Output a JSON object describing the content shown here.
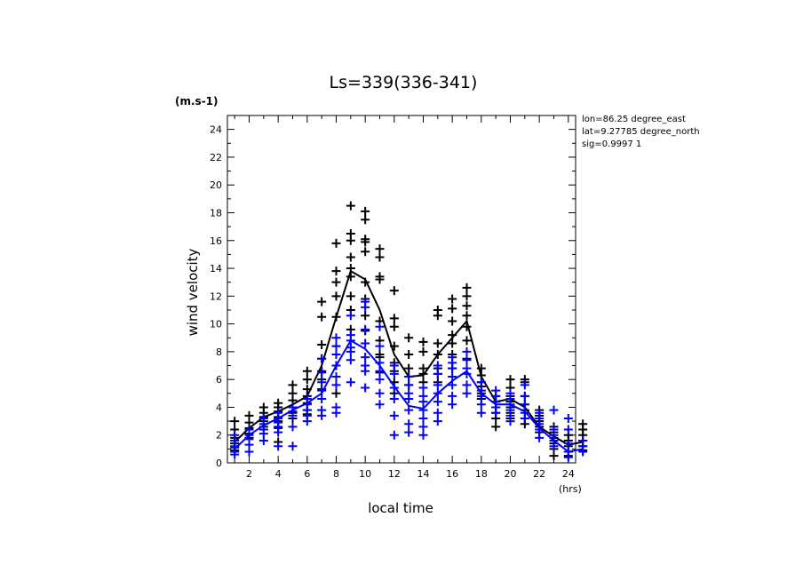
{
  "chart_data": {
    "type": "scatter",
    "title": "Ls=339(336-341)",
    "ylabel": "wind velocity",
    "yunit": "(m.s-1)",
    "xlabel": "local time",
    "xunit": "(hrs)",
    "xlim": [
      0.5,
      24.5
    ],
    "ylim": [
      0,
      25
    ],
    "xticks": [
      2,
      4,
      6,
      8,
      10,
      12,
      14,
      16,
      18,
      20,
      22,
      24
    ],
    "yticks": [
      0,
      2,
      4,
      6,
      8,
      10,
      12,
      14,
      16,
      18,
      20,
      22,
      24
    ],
    "info": [
      "lon=86.25 degree_east",
      "lat=9.27785 degree_north",
      "sig=0.9997 1"
    ],
    "colors": {
      "black_series": "#000000",
      "blue_series": "#0000ff"
    },
    "series": [
      {
        "color": "#000000",
        "mean": [
          1.5,
          2.5,
          3.3,
          3.7,
          4.2,
          4.8,
          7.0,
          10.5,
          13.8,
          13.2,
          11.0,
          7.8,
          6.2,
          6.3,
          7.8,
          9.0,
          10.2,
          6.2,
          4.4,
          4.6,
          4.0,
          2.6,
          1.9,
          1.3,
          1.5
        ],
        "points": [
          [
            1,
            3.0
          ],
          [
            1,
            2.4
          ],
          [
            1,
            1.8
          ],
          [
            1,
            1.4
          ],
          [
            1,
            1.1
          ],
          [
            1,
            0.9
          ],
          [
            2,
            3.4
          ],
          [
            2,
            2.9
          ],
          [
            2,
            2.5
          ],
          [
            2,
            2.1
          ],
          [
            2,
            1.8
          ],
          [
            3,
            4.0
          ],
          [
            3,
            3.6
          ],
          [
            3,
            3.3
          ],
          [
            3,
            3.0
          ],
          [
            3,
            2.6
          ],
          [
            4,
            4.3
          ],
          [
            4,
            4.0
          ],
          [
            4,
            3.7
          ],
          [
            4,
            3.3
          ],
          [
            4,
            3.0
          ],
          [
            4,
            2.5
          ],
          [
            4,
            1.5
          ],
          [
            5,
            5.6
          ],
          [
            5,
            5.0
          ],
          [
            5,
            4.5
          ],
          [
            5,
            4.0
          ],
          [
            5,
            3.6
          ],
          [
            5,
            3.2
          ],
          [
            6,
            6.6
          ],
          [
            6,
            6.0
          ],
          [
            6,
            5.3
          ],
          [
            6,
            4.8
          ],
          [
            6,
            4.3
          ],
          [
            6,
            3.8
          ],
          [
            6,
            3.5
          ],
          [
            7,
            11.6
          ],
          [
            7,
            10.5
          ],
          [
            7,
            8.5
          ],
          [
            7,
            7.5
          ],
          [
            7,
            6.6
          ],
          [
            7,
            6.0
          ],
          [
            7,
            5.3
          ],
          [
            8,
            15.8
          ],
          [
            8,
            13.8
          ],
          [
            8,
            13.0
          ],
          [
            8,
            12.0
          ],
          [
            8,
            10.5
          ],
          [
            8,
            8.4
          ],
          [
            8,
            7.0
          ],
          [
            8,
            6.2
          ],
          [
            8,
            5.0
          ],
          [
            9,
            18.5
          ],
          [
            9,
            16.5
          ],
          [
            9,
            16.0
          ],
          [
            9,
            14.8
          ],
          [
            9,
            14.0
          ],
          [
            9,
            13.4
          ],
          [
            9,
            12.0
          ],
          [
            9,
            11.0
          ],
          [
            9,
            9.6
          ],
          [
            10,
            18.1
          ],
          [
            10,
            17.5
          ],
          [
            10,
            16.1
          ],
          [
            10,
            15.9
          ],
          [
            10,
            15.2
          ],
          [
            10,
            13.0
          ],
          [
            10,
            11.8
          ],
          [
            10,
            10.6
          ],
          [
            10,
            9.5
          ],
          [
            11,
            15.4
          ],
          [
            11,
            14.8
          ],
          [
            11,
            13.4
          ],
          [
            11,
            13.2
          ],
          [
            11,
            10.2
          ],
          [
            11,
            8.8
          ],
          [
            11,
            7.8
          ],
          [
            11,
            7.6
          ],
          [
            11,
            6.5
          ],
          [
            12,
            12.4
          ],
          [
            12,
            10.4
          ],
          [
            12,
            9.8
          ],
          [
            12,
            8.4
          ],
          [
            12,
            7.2
          ],
          [
            12,
            6.6
          ],
          [
            12,
            5.8
          ],
          [
            12,
            5.0
          ],
          [
            13,
            9.0
          ],
          [
            13,
            7.8
          ],
          [
            13,
            6.8
          ],
          [
            13,
            6.2
          ],
          [
            13,
            5.6
          ],
          [
            14,
            8.7
          ],
          [
            14,
            8.0
          ],
          [
            14,
            6.8
          ],
          [
            14,
            6.4
          ],
          [
            14,
            5.8
          ],
          [
            14,
            5.4
          ],
          [
            15,
            11.0
          ],
          [
            15,
            10.6
          ],
          [
            15,
            8.6
          ],
          [
            15,
            7.8
          ],
          [
            15,
            6.8
          ],
          [
            15,
            6.4
          ],
          [
            15,
            5.8
          ],
          [
            16,
            11.8
          ],
          [
            16,
            11.1
          ],
          [
            16,
            10.2
          ],
          [
            16,
            9.2
          ],
          [
            16,
            8.6
          ],
          [
            16,
            7.8
          ],
          [
            16,
            6.8
          ],
          [
            17,
            12.6
          ],
          [
            17,
            12.0
          ],
          [
            17,
            11.3
          ],
          [
            17,
            10.6
          ],
          [
            17,
            9.8
          ],
          [
            17,
            8.8
          ],
          [
            17,
            7.5
          ],
          [
            18,
            6.8
          ],
          [
            18,
            6.3
          ],
          [
            18,
            5.8
          ],
          [
            18,
            5.5
          ],
          [
            18,
            5.0
          ],
          [
            18,
            4.6
          ],
          [
            19,
            4.8
          ],
          [
            19,
            4.4
          ],
          [
            19,
            4.0
          ],
          [
            19,
            3.6
          ],
          [
            19,
            3.2
          ],
          [
            19,
            2.6
          ],
          [
            20,
            6.0
          ],
          [
            20,
            5.4
          ],
          [
            20,
            4.8
          ],
          [
            20,
            4.4
          ],
          [
            20,
            4.0
          ],
          [
            20,
            3.6
          ],
          [
            20,
            3.2
          ],
          [
            21,
            6.0
          ],
          [
            21,
            5.8
          ],
          [
            21,
            4.8
          ],
          [
            21,
            4.2
          ],
          [
            21,
            3.8
          ],
          [
            21,
            3.2
          ],
          [
            21,
            2.8
          ],
          [
            22,
            3.8
          ],
          [
            22,
            3.4
          ],
          [
            22,
            3.0
          ],
          [
            22,
            2.6
          ],
          [
            22,
            2.2
          ],
          [
            23,
            2.6
          ],
          [
            23,
            2.2
          ],
          [
            23,
            1.8
          ],
          [
            23,
            1.4
          ],
          [
            23,
            1.0
          ],
          [
            23,
            0.5
          ],
          [
            24,
            2.0
          ],
          [
            24,
            1.6
          ],
          [
            24,
            1.2
          ],
          [
            24,
            0.8
          ],
          [
            24,
            0.5
          ],
          [
            25,
            2.8
          ],
          [
            25,
            2.4
          ],
          [
            25,
            2.0
          ],
          [
            25,
            1.6
          ],
          [
            25,
            1.2
          ],
          [
            25,
            0.9
          ]
        ]
      },
      {
        "color": "#0000ff",
        "mean": [
          1.0,
          2.0,
          2.7,
          3.2,
          3.8,
          4.3,
          5.0,
          7.0,
          8.8,
          8.2,
          7.0,
          5.5,
          4.1,
          3.9,
          5.0,
          5.9,
          6.6,
          5.0,
          4.2,
          4.2,
          3.7,
          2.5,
          1.6,
          0.8,
          1.0
        ],
        "points": [
          [
            1,
            2.0
          ],
          [
            1,
            1.6
          ],
          [
            1,
            1.2
          ],
          [
            1,
            0.8
          ],
          [
            1,
            0.6
          ],
          [
            2,
            2.4
          ],
          [
            2,
            2.0
          ],
          [
            2,
            1.7
          ],
          [
            2,
            1.3
          ],
          [
            2,
            0.8
          ],
          [
            3,
            3.2
          ],
          [
            3,
            2.8
          ],
          [
            3,
            2.4
          ],
          [
            3,
            2.1
          ],
          [
            3,
            1.6
          ],
          [
            4,
            3.6
          ],
          [
            4,
            3.2
          ],
          [
            4,
            2.9
          ],
          [
            4,
            2.6
          ],
          [
            4,
            2.2
          ],
          [
            4,
            1.2
          ],
          [
            5,
            4.0
          ],
          [
            5,
            3.7
          ],
          [
            5,
            3.4
          ],
          [
            5,
            2.6
          ],
          [
            5,
            1.2
          ],
          [
            6,
            4.6
          ],
          [
            6,
            4.2
          ],
          [
            6,
            3.8
          ],
          [
            6,
            3.4
          ],
          [
            6,
            3.0
          ],
          [
            7,
            7.5
          ],
          [
            7,
            6.5
          ],
          [
            7,
            5.8
          ],
          [
            7,
            5.2
          ],
          [
            7,
            4.6
          ],
          [
            7,
            3.8
          ],
          [
            7,
            3.4
          ],
          [
            8,
            9.0
          ],
          [
            8,
            8.4
          ],
          [
            8,
            7.8
          ],
          [
            8,
            7.0
          ],
          [
            8,
            6.2
          ],
          [
            8,
            5.6
          ],
          [
            8,
            4.0
          ],
          [
            8,
            3.6
          ],
          [
            9,
            10.6
          ],
          [
            9,
            9.2
          ],
          [
            9,
            8.8
          ],
          [
            9,
            8.3
          ],
          [
            9,
            8.0
          ],
          [
            9,
            7.4
          ],
          [
            9,
            5.8
          ],
          [
            10,
            11.6
          ],
          [
            10,
            11.2
          ],
          [
            10,
            9.6
          ],
          [
            10,
            8.6
          ],
          [
            10,
            7.6
          ],
          [
            10,
            7.0
          ],
          [
            10,
            6.6
          ],
          [
            10,
            5.4
          ],
          [
            11,
            9.8
          ],
          [
            11,
            8.4
          ],
          [
            11,
            7.2
          ],
          [
            11,
            6.6
          ],
          [
            11,
            6.0
          ],
          [
            11,
            5.0
          ],
          [
            11,
            4.2
          ],
          [
            12,
            7.0
          ],
          [
            12,
            6.4
          ],
          [
            12,
            5.4
          ],
          [
            12,
            4.6
          ],
          [
            12,
            3.4
          ],
          [
            12,
            2.0
          ],
          [
            13,
            6.2
          ],
          [
            13,
            5.6
          ],
          [
            13,
            5.0
          ],
          [
            13,
            4.6
          ],
          [
            13,
            3.8
          ],
          [
            13,
            2.8
          ],
          [
            13,
            2.2
          ],
          [
            14,
            5.4
          ],
          [
            14,
            4.8
          ],
          [
            14,
            4.4
          ],
          [
            14,
            3.8
          ],
          [
            14,
            3.2
          ],
          [
            14,
            2.6
          ],
          [
            14,
            2.0
          ],
          [
            15,
            7.0
          ],
          [
            15,
            6.4
          ],
          [
            15,
            5.6
          ],
          [
            15,
            5.0
          ],
          [
            15,
            4.4
          ],
          [
            15,
            3.6
          ],
          [
            15,
            3.0
          ],
          [
            16,
            7.6
          ],
          [
            16,
            7.2
          ],
          [
            16,
            6.8
          ],
          [
            16,
            6.2
          ],
          [
            16,
            5.6
          ],
          [
            16,
            4.8
          ],
          [
            16,
            4.2
          ],
          [
            17,
            8.0
          ],
          [
            17,
            7.4
          ],
          [
            17,
            6.8
          ],
          [
            17,
            6.4
          ],
          [
            17,
            5.6
          ],
          [
            17,
            5.0
          ],
          [
            18,
            5.8
          ],
          [
            18,
            5.2
          ],
          [
            18,
            4.8
          ],
          [
            18,
            4.2
          ],
          [
            18,
            3.6
          ],
          [
            19,
            5.2
          ],
          [
            19,
            4.8
          ],
          [
            19,
            4.4
          ],
          [
            19,
            4.0
          ],
          [
            19,
            3.6
          ],
          [
            20,
            5.0
          ],
          [
            20,
            4.6
          ],
          [
            20,
            4.2
          ],
          [
            20,
            3.8
          ],
          [
            20,
            3.4
          ],
          [
            20,
            3.0
          ],
          [
            21,
            5.6
          ],
          [
            21,
            4.8
          ],
          [
            21,
            4.2
          ],
          [
            21,
            3.6
          ],
          [
            21,
            3.2
          ],
          [
            22,
            3.6
          ],
          [
            22,
            3.2
          ],
          [
            22,
            2.8
          ],
          [
            22,
            2.4
          ],
          [
            22,
            1.8
          ],
          [
            23,
            3.8
          ],
          [
            23,
            2.4
          ],
          [
            23,
            2.0
          ],
          [
            23,
            1.6
          ],
          [
            23,
            1.2
          ],
          [
            24,
            3.2
          ],
          [
            24,
            2.4
          ],
          [
            24,
            1.4
          ],
          [
            24,
            0.8
          ],
          [
            24,
            0.4
          ],
          [
            25,
            1.6
          ],
          [
            25,
            1.2
          ],
          [
            25,
            0.8
          ]
        ]
      }
    ]
  }
}
